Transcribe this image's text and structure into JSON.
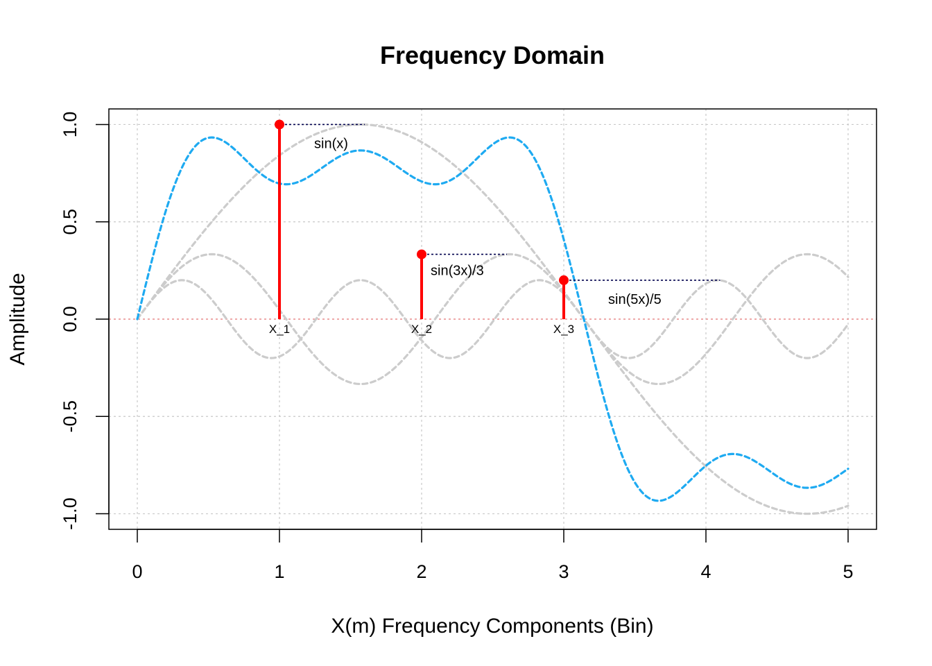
{
  "chart_data": {
    "type": "line",
    "title": "Frequency Domain",
    "xlabel": "X(m) Frequency Components (Bin)",
    "ylabel": "Amplitude",
    "xlim": [
      -0.2,
      5.2
    ],
    "ylim": [
      -1.08,
      1.08
    ],
    "x_ticks": [
      "0",
      "1",
      "2",
      "3",
      "4",
      "5"
    ],
    "y_ticks": [
      "-1.0",
      "-0.5",
      "0.0",
      "0.5",
      "1.0"
    ],
    "grid": true,
    "x_domain": [
      0,
      5
    ],
    "colors": {
      "sum": "#1eaaf1",
      "components": "#cccccc",
      "stems": "#ff0000",
      "zero_line": "#e88c8c",
      "grid": "#c8c8c8",
      "connector": "#00004d"
    },
    "curves": [
      {
        "key": "sin(x)",
        "style": "dashed-gray"
      },
      {
        "key": "sin(3x)/3",
        "style": "dashed-gray"
      },
      {
        "key": "sin(5x)/5",
        "style": "dashed-gray"
      },
      {
        "key": "sin(x)+sin(3x)/3+sin(5x)/5",
        "style": "dashed-blue"
      }
    ],
    "stems": [
      {
        "bin": "X_1",
        "x": 1,
        "y": 1.0,
        "label": "sin(x)",
        "connector_to_x": 1.6
      },
      {
        "bin": "X_2",
        "x": 2,
        "y": 0.333,
        "label": "sin(3x)/3",
        "connector_to_x": 2.6
      },
      {
        "bin": "X_3",
        "x": 3,
        "y": 0.2,
        "label": "sin(5x)/5",
        "connector_to_x": 4.1
      }
    ]
  }
}
